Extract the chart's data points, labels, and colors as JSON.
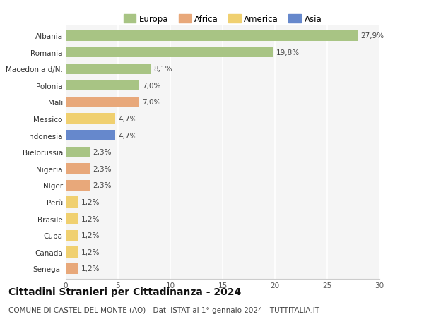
{
  "countries": [
    "Albania",
    "Romania",
    "Macedonia d/N.",
    "Polonia",
    "Mali",
    "Messico",
    "Indonesia",
    "Bielorussia",
    "Nigeria",
    "Niger",
    "Perù",
    "Brasile",
    "Cuba",
    "Canada",
    "Senegal"
  ],
  "values": [
    27.9,
    19.8,
    8.1,
    7.0,
    7.0,
    4.7,
    4.7,
    2.3,
    2.3,
    2.3,
    1.2,
    1.2,
    1.2,
    1.2,
    1.2
  ],
  "labels": [
    "27,9%",
    "19,8%",
    "8,1%",
    "7,0%",
    "7,0%",
    "4,7%",
    "4,7%",
    "2,3%",
    "2,3%",
    "2,3%",
    "1,2%",
    "1,2%",
    "1,2%",
    "1,2%",
    "1,2%"
  ],
  "continents": [
    "Europa",
    "Europa",
    "Europa",
    "Europa",
    "Africa",
    "America",
    "Asia",
    "Europa",
    "Africa",
    "Africa",
    "America",
    "America",
    "America",
    "America",
    "Africa"
  ],
  "continent_colors": {
    "Europa": "#a8c484",
    "Africa": "#e8a87a",
    "America": "#f0d070",
    "Asia": "#6688cc"
  },
  "legend_order": [
    "Europa",
    "Africa",
    "America",
    "Asia"
  ],
  "title": "Cittadini Stranieri per Cittadinanza - 2024",
  "subtitle": "COMUNE DI CASTEL DEL MONTE (AQ) - Dati ISTAT al 1° gennaio 2024 - TUTTITALIA.IT",
  "xlim": [
    0,
    30
  ],
  "xticks": [
    0,
    5,
    10,
    15,
    20,
    25,
    30
  ],
  "background_color": "#ffffff",
  "plot_bg_color": "#f5f5f5",
  "grid_color": "#ffffff",
  "bar_height": 0.65,
  "title_fontsize": 10,
  "subtitle_fontsize": 7.5,
  "label_fontsize": 7.5,
  "tick_fontsize": 7.5,
  "legend_fontsize": 8.5
}
